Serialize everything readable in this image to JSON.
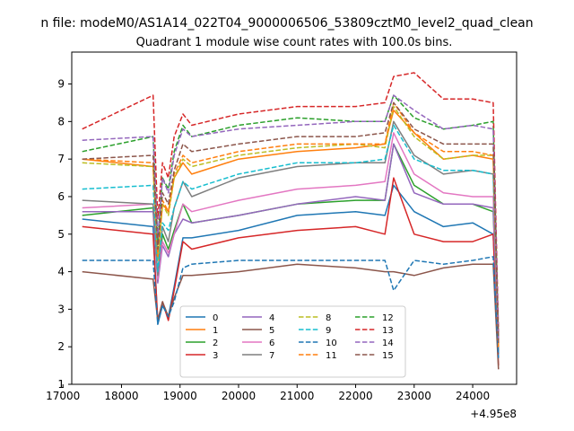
{
  "suptitle": "n file: modeM0/AS1A14_022T04_9000006506_53809cztM0_level2_quad_clean",
  "chart_data": {
    "type": "line",
    "title": "Quadrant 1 module wise count rates with 100.0s bins.",
    "xlabel": "",
    "ylabel": "",
    "x_offset_label": "+4.95e8",
    "xlim": [
      17150,
      24750
    ],
    "ylim": [
      1.0,
      9.85
    ],
    "x_ticks": [
      17000,
      18000,
      19000,
      20000,
      21000,
      22000,
      23000,
      24000
    ],
    "x_tick_labels": [
      "17000",
      "18000",
      "19000",
      "20000",
      "21000",
      "22000",
      "23000",
      "24000"
    ],
    "y_ticks": [
      1,
      2,
      3,
      4,
      5,
      6,
      7,
      8,
      9
    ],
    "y_tick_labels": [
      "1",
      "2",
      "3",
      "4",
      "5",
      "6",
      "7",
      "8",
      "9"
    ],
    "grid": false,
    "legend": {
      "placement": "lower center",
      "columns": 4
    },
    "x": [
      17330,
      18540,
      18620,
      18700,
      18800,
      18900,
      19050,
      19200,
      20000,
      21000,
      22000,
      22500,
      22650,
      23000,
      23500,
      24000,
      24350,
      24440
    ],
    "series": [
      {
        "name": "0",
        "color": "#1f77b4",
        "dash": "solid",
        "values": [
          5.4,
          5.2,
          2.6,
          3.1,
          2.8,
          3.6,
          4.9,
          4.9,
          5.1,
          5.5,
          5.6,
          5.5,
          6.3,
          5.6,
          5.2,
          5.3,
          5.0,
          1.8
        ]
      },
      {
        "name": "1",
        "color": "#ff7f0e",
        "dash": "solid",
        "values": [
          7.0,
          6.8,
          4.3,
          5.8,
          5.6,
          6.5,
          6.9,
          6.6,
          7.0,
          7.2,
          7.3,
          7.4,
          8.3,
          7.7,
          7.0,
          7.1,
          7.0,
          2.0
        ]
      },
      {
        "name": "2",
        "color": "#2ca02c",
        "dash": "solid",
        "values": [
          5.5,
          5.7,
          3.8,
          5.0,
          4.6,
          5.1,
          5.8,
          5.3,
          5.5,
          5.8,
          5.9,
          5.9,
          7.4,
          6.3,
          5.8,
          5.8,
          5.6,
          1.9
        ]
      },
      {
        "name": "3",
        "color": "#d62728",
        "dash": "solid",
        "values": [
          5.2,
          5.0,
          2.7,
          3.2,
          2.7,
          3.5,
          4.8,
          4.6,
          4.9,
          5.1,
          5.2,
          5.0,
          6.5,
          5.0,
          4.8,
          4.8,
          5.0,
          1.5
        ]
      },
      {
        "name": "4",
        "color": "#9467bd",
        "dash": "solid",
        "values": [
          5.6,
          5.6,
          3.7,
          4.7,
          4.4,
          5.0,
          5.4,
          5.3,
          5.5,
          5.8,
          6.0,
          5.9,
          7.4,
          6.1,
          5.8,
          5.8,
          5.7,
          1.9
        ]
      },
      {
        "name": "5",
        "color": "#8c564b",
        "dash": "solid",
        "values": [
          4.0,
          3.8,
          2.7,
          3.2,
          2.8,
          3.3,
          3.9,
          3.9,
          4.0,
          4.2,
          4.1,
          4.0,
          4.0,
          3.9,
          4.1,
          4.2,
          4.2,
          1.4
        ]
      },
      {
        "name": "6",
        "color": "#e377c2",
        "dash": "solid",
        "values": [
          5.7,
          5.8,
          3.8,
          4.8,
          4.5,
          5.0,
          5.8,
          5.6,
          5.9,
          6.2,
          6.3,
          6.4,
          7.7,
          6.6,
          6.1,
          6.0,
          6.0,
          2.0
        ]
      },
      {
        "name": "7",
        "color": "#7f7f7f",
        "dash": "solid",
        "values": [
          5.9,
          5.8,
          3.9,
          5.2,
          4.8,
          5.7,
          6.4,
          6.0,
          6.5,
          6.8,
          6.9,
          6.9,
          8.0,
          7.1,
          6.6,
          6.7,
          6.6,
          1.9
        ]
      },
      {
        "name": "8",
        "color": "#bcbd22",
        "dash": "dashed",
        "values": [
          6.9,
          6.8,
          4.3,
          5.8,
          5.5,
          6.5,
          7.0,
          6.8,
          7.1,
          7.3,
          7.4,
          7.3,
          8.4,
          7.6,
          7.0,
          7.1,
          7.1,
          2.0
        ]
      },
      {
        "name": "9",
        "color": "#17becf",
        "dash": "dashed",
        "values": [
          6.2,
          6.3,
          4.0,
          5.3,
          5.1,
          5.7,
          6.4,
          6.2,
          6.6,
          6.9,
          6.9,
          7.0,
          7.9,
          7.0,
          6.7,
          6.7,
          6.6,
          2.0
        ]
      },
      {
        "name": "10",
        "color": "#1f77b4",
        "dash": "dashed",
        "values": [
          4.3,
          4.3,
          2.6,
          3.1,
          2.8,
          3.2,
          4.1,
          4.2,
          4.3,
          4.3,
          4.3,
          4.3,
          3.5,
          4.3,
          4.2,
          4.3,
          4.4,
          1.7
        ]
      },
      {
        "name": "11",
        "color": "#ff7f0e",
        "dash": "dashed",
        "values": [
          7.0,
          6.9,
          4.4,
          5.9,
          5.6,
          6.6,
          7.1,
          6.9,
          7.2,
          7.4,
          7.4,
          7.4,
          8.5,
          7.7,
          7.2,
          7.2,
          7.1,
          2.0
        ]
      },
      {
        "name": "12",
        "color": "#2ca02c",
        "dash": "dashed",
        "values": [
          7.2,
          7.6,
          4.8,
          6.5,
          6.2,
          7.2,
          7.9,
          7.6,
          7.9,
          8.1,
          8.0,
          8.0,
          8.7,
          8.1,
          7.8,
          7.9,
          8.0,
          2.2
        ]
      },
      {
        "name": "13",
        "color": "#d62728",
        "dash": "dashed",
        "values": [
          7.8,
          8.7,
          5.4,
          6.9,
          6.5,
          7.6,
          8.2,
          7.9,
          8.2,
          8.4,
          8.4,
          8.5,
          9.2,
          9.3,
          8.6,
          8.6,
          8.5,
          2.4
        ]
      },
      {
        "name": "14",
        "color": "#9467bd",
        "dash": "dashed",
        "values": [
          7.5,
          7.6,
          4.9,
          6.5,
          6.1,
          7.1,
          7.8,
          7.6,
          7.8,
          7.9,
          8.0,
          8.0,
          8.7,
          8.3,
          7.8,
          7.9,
          7.8,
          2.2
        ]
      },
      {
        "name": "15",
        "color": "#8c564b",
        "dash": "dashed",
        "values": [
          7.0,
          7.1,
          4.6,
          6.1,
          5.8,
          6.7,
          7.4,
          7.2,
          7.4,
          7.6,
          7.6,
          7.7,
          8.5,
          7.8,
          7.4,
          7.4,
          7.4,
          2.1
        ]
      }
    ]
  }
}
